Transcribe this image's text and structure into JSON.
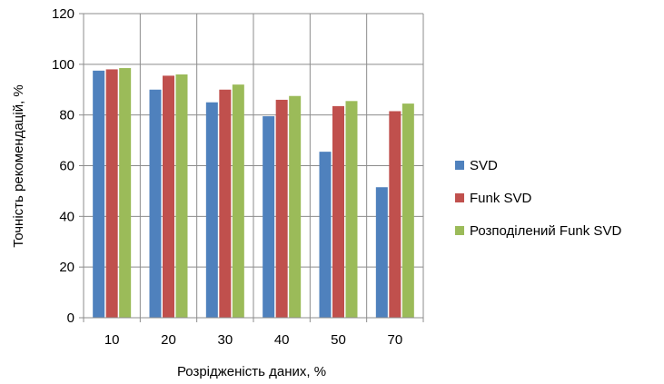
{
  "chart_data": {
    "type": "bar",
    "title": "",
    "xlabel": "Розрідженість даних, %",
    "ylabel": "Точність рекомендацій, %",
    "categories": [
      "10",
      "20",
      "30",
      "40",
      "50",
      "70"
    ],
    "ylim": [
      0,
      120
    ],
    "yticks": [
      "0",
      "20",
      "40",
      "60",
      "80",
      "100",
      "120"
    ],
    "grid": true,
    "legend_position": "right",
    "series": [
      {
        "name": "SVD",
        "color": "#4F81BD",
        "values": [
          97.5,
          90,
          85,
          79.5,
          65.5,
          51.5
        ]
      },
      {
        "name": "Funk SVD",
        "color": "#C0504D",
        "values": [
          98,
          95.5,
          90,
          86,
          83.5,
          81.5
        ]
      },
      {
        "name": "Розподілений Funk SVD",
        "color": "#9BBB59",
        "values": [
          98.5,
          96,
          92,
          87.5,
          85.5,
          84.5
        ]
      }
    ]
  }
}
